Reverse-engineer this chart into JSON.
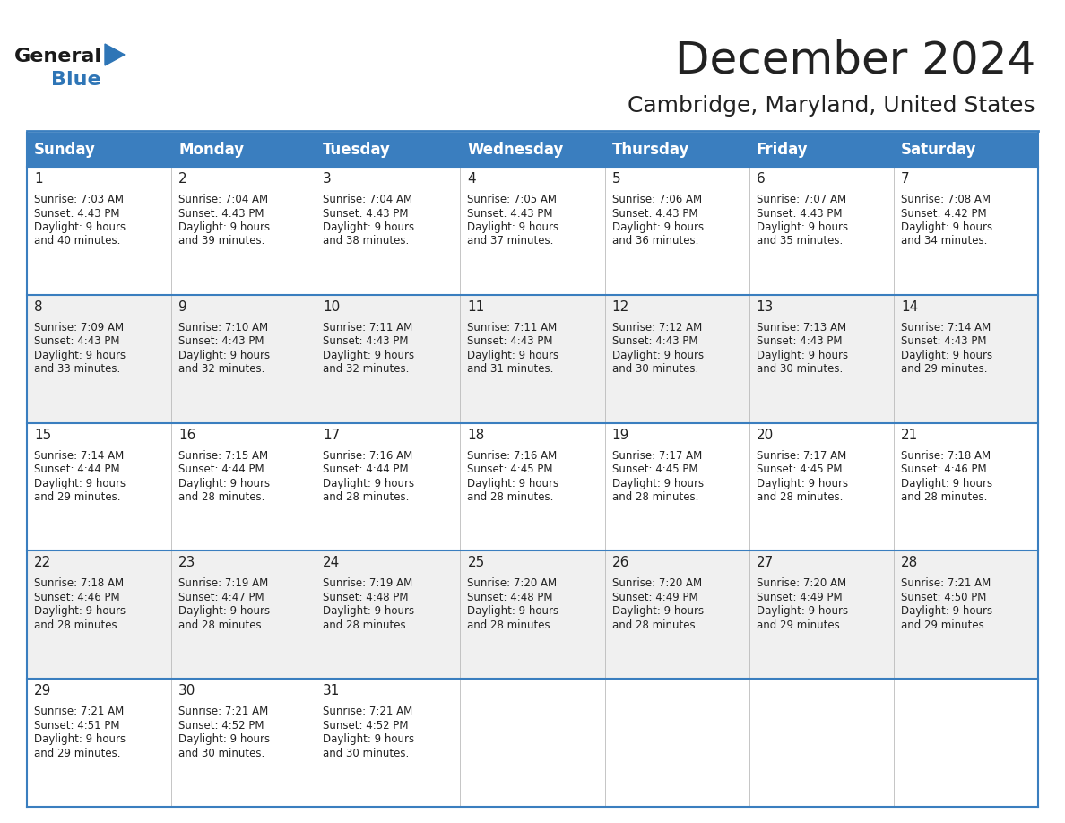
{
  "title": "December 2024",
  "subtitle": "Cambridge, Maryland, United States",
  "header_bg_color": "#3a7ebf",
  "header_text_color": "#ffffff",
  "cell_bg_white": "#ffffff",
  "cell_bg_gray": "#f0f0f0",
  "border_color": "#3a7ebf",
  "text_color": "#222222",
  "logo_text_color": "#1a1a1a",
  "logo_blue_color": "#2e75b6",
  "days_of_week": [
    "Sunday",
    "Monday",
    "Tuesday",
    "Wednesday",
    "Thursday",
    "Friday",
    "Saturday"
  ],
  "calendar_data": [
    [
      {
        "day": 1,
        "sunrise": "7:03 AM",
        "sunset": "4:43 PM",
        "daylight_hours": 9,
        "daylight_min": "40 minutes."
      },
      {
        "day": 2,
        "sunrise": "7:04 AM",
        "sunset": "4:43 PM",
        "daylight_hours": 9,
        "daylight_min": "39 minutes."
      },
      {
        "day": 3,
        "sunrise": "7:04 AM",
        "sunset": "4:43 PM",
        "daylight_hours": 9,
        "daylight_min": "38 minutes."
      },
      {
        "day": 4,
        "sunrise": "7:05 AM",
        "sunset": "4:43 PM",
        "daylight_hours": 9,
        "daylight_min": "37 minutes."
      },
      {
        "day": 5,
        "sunrise": "7:06 AM",
        "sunset": "4:43 PM",
        "daylight_hours": 9,
        "daylight_min": "36 minutes."
      },
      {
        "day": 6,
        "sunrise": "7:07 AM",
        "sunset": "4:43 PM",
        "daylight_hours": 9,
        "daylight_min": "35 minutes."
      },
      {
        "day": 7,
        "sunrise": "7:08 AM",
        "sunset": "4:42 PM",
        "daylight_hours": 9,
        "daylight_min": "34 minutes."
      }
    ],
    [
      {
        "day": 8,
        "sunrise": "7:09 AM",
        "sunset": "4:43 PM",
        "daylight_hours": 9,
        "daylight_min": "33 minutes."
      },
      {
        "day": 9,
        "sunrise": "7:10 AM",
        "sunset": "4:43 PM",
        "daylight_hours": 9,
        "daylight_min": "32 minutes."
      },
      {
        "day": 10,
        "sunrise": "7:11 AM",
        "sunset": "4:43 PM",
        "daylight_hours": 9,
        "daylight_min": "32 minutes."
      },
      {
        "day": 11,
        "sunrise": "7:11 AM",
        "sunset": "4:43 PM",
        "daylight_hours": 9,
        "daylight_min": "31 minutes."
      },
      {
        "day": 12,
        "sunrise": "7:12 AM",
        "sunset": "4:43 PM",
        "daylight_hours": 9,
        "daylight_min": "30 minutes."
      },
      {
        "day": 13,
        "sunrise": "7:13 AM",
        "sunset": "4:43 PM",
        "daylight_hours": 9,
        "daylight_min": "30 minutes."
      },
      {
        "day": 14,
        "sunrise": "7:14 AM",
        "sunset": "4:43 PM",
        "daylight_hours": 9,
        "daylight_min": "29 minutes."
      }
    ],
    [
      {
        "day": 15,
        "sunrise": "7:14 AM",
        "sunset": "4:44 PM",
        "daylight_hours": 9,
        "daylight_min": "29 minutes."
      },
      {
        "day": 16,
        "sunrise": "7:15 AM",
        "sunset": "4:44 PM",
        "daylight_hours": 9,
        "daylight_min": "28 minutes."
      },
      {
        "day": 17,
        "sunrise": "7:16 AM",
        "sunset": "4:44 PM",
        "daylight_hours": 9,
        "daylight_min": "28 minutes."
      },
      {
        "day": 18,
        "sunrise": "7:16 AM",
        "sunset": "4:45 PM",
        "daylight_hours": 9,
        "daylight_min": "28 minutes."
      },
      {
        "day": 19,
        "sunrise": "7:17 AM",
        "sunset": "4:45 PM",
        "daylight_hours": 9,
        "daylight_min": "28 minutes."
      },
      {
        "day": 20,
        "sunrise": "7:17 AM",
        "sunset": "4:45 PM",
        "daylight_hours": 9,
        "daylight_min": "28 minutes."
      },
      {
        "day": 21,
        "sunrise": "7:18 AM",
        "sunset": "4:46 PM",
        "daylight_hours": 9,
        "daylight_min": "28 minutes."
      }
    ],
    [
      {
        "day": 22,
        "sunrise": "7:18 AM",
        "sunset": "4:46 PM",
        "daylight_hours": 9,
        "daylight_min": "28 minutes."
      },
      {
        "day": 23,
        "sunrise": "7:19 AM",
        "sunset": "4:47 PM",
        "daylight_hours": 9,
        "daylight_min": "28 minutes."
      },
      {
        "day": 24,
        "sunrise": "7:19 AM",
        "sunset": "4:48 PM",
        "daylight_hours": 9,
        "daylight_min": "28 minutes."
      },
      {
        "day": 25,
        "sunrise": "7:20 AM",
        "sunset": "4:48 PM",
        "daylight_hours": 9,
        "daylight_min": "28 minutes."
      },
      {
        "day": 26,
        "sunrise": "7:20 AM",
        "sunset": "4:49 PM",
        "daylight_hours": 9,
        "daylight_min": "28 minutes."
      },
      {
        "day": 27,
        "sunrise": "7:20 AM",
        "sunset": "4:49 PM",
        "daylight_hours": 9,
        "daylight_min": "29 minutes."
      },
      {
        "day": 28,
        "sunrise": "7:21 AM",
        "sunset": "4:50 PM",
        "daylight_hours": 9,
        "daylight_min": "29 minutes."
      }
    ],
    [
      {
        "day": 29,
        "sunrise": "7:21 AM",
        "sunset": "4:51 PM",
        "daylight_hours": 9,
        "daylight_min": "29 minutes."
      },
      {
        "day": 30,
        "sunrise": "7:21 AM",
        "sunset": "4:52 PM",
        "daylight_hours": 9,
        "daylight_min": "30 minutes."
      },
      {
        "day": 31,
        "sunrise": "7:21 AM",
        "sunset": "4:52 PM",
        "daylight_hours": 9,
        "daylight_min": "30 minutes."
      },
      null,
      null,
      null,
      null
    ]
  ],
  "title_fontsize": 36,
  "subtitle_fontsize": 18,
  "day_header_fontsize": 12,
  "day_number_fontsize": 11,
  "cell_text_fontsize": 8.5,
  "logo_general_fontsize": 16,
  "logo_blue_fontsize": 16
}
